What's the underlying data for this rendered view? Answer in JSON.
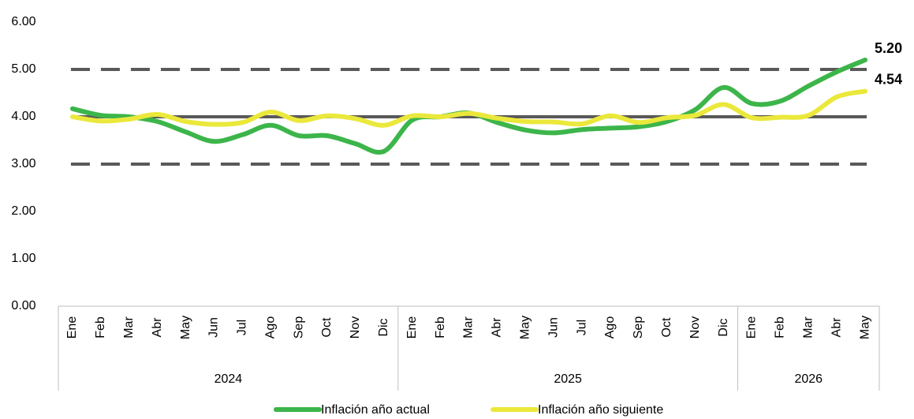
{
  "chart_data": {
    "type": "line",
    "groups": [
      {
        "label": "2024",
        "months": [
          "Ene",
          "Feb",
          "Mar",
          "Abr",
          "May",
          "Jun",
          "Jul",
          "Ago",
          "Sep",
          "Oct",
          "Nov",
          "Dic"
        ]
      },
      {
        "label": "2025",
        "months": [
          "Ene",
          "Feb",
          "Mar",
          "Abr",
          "May",
          "Jun",
          "Jul",
          "Ago",
          "Sep",
          "Oct",
          "Nov",
          "Dic"
        ]
      },
      {
        "label": "2026",
        "months": [
          "Ene",
          "Feb",
          "Mar",
          "Abr",
          "May"
        ]
      }
    ],
    "series": [
      {
        "name": "Inflación año actual",
        "color": "#3cb54a",
        "values": [
          4.17,
          4.03,
          4.0,
          3.9,
          3.68,
          3.48,
          3.62,
          3.82,
          3.6,
          3.6,
          3.43,
          3.27,
          3.93,
          4.0,
          4.08,
          3.88,
          3.72,
          3.66,
          3.73,
          3.76,
          3.79,
          3.9,
          4.15,
          4.62,
          4.28,
          4.33,
          4.65,
          4.95,
          5.2
        ],
        "value_labels": [
          null,
          null,
          null,
          null,
          null,
          null,
          null,
          null,
          null,
          null,
          null,
          null,
          null,
          null,
          null,
          null,
          null,
          null,
          null,
          null,
          null,
          null,
          null,
          null,
          null,
          null,
          null,
          null,
          "5.20"
        ]
      },
      {
        "name": "Inflación año siguiente",
        "color": "#ebe83c",
        "values": [
          4.0,
          3.91,
          3.95,
          4.05,
          3.9,
          3.84,
          3.88,
          4.1,
          3.92,
          4.02,
          3.96,
          3.82,
          4.02,
          4.0,
          4.07,
          3.97,
          3.9,
          3.89,
          3.85,
          4.02,
          3.88,
          3.98,
          4.03,
          4.26,
          3.98,
          3.99,
          4.03,
          4.42,
          4.54
        ],
        "value_labels": [
          null,
          null,
          null,
          null,
          null,
          null,
          null,
          null,
          null,
          null,
          null,
          null,
          null,
          null,
          null,
          null,
          null,
          null,
          null,
          null,
          null,
          null,
          null,
          null,
          null,
          null,
          null,
          null,
          "4.54"
        ]
      }
    ],
    "reference_lines": [
      {
        "value": 3,
        "style": "dashed"
      },
      {
        "value": 4,
        "style": "solid"
      },
      {
        "value": 5,
        "style": "dashed"
      }
    ],
    "reference_color": "#595959",
    "ylim": [
      0,
      6
    ],
    "yticks": [
      {
        "value": 0,
        "label": "0.00"
      },
      {
        "value": 1,
        "label": "1.00"
      },
      {
        "value": 2,
        "label": "2.00"
      },
      {
        "value": 3,
        "label": "3.00"
      },
      {
        "value": 4,
        "label": "4.00"
      },
      {
        "value": 5,
        "label": "5.00"
      },
      {
        "value": 6,
        "label": "6.00"
      }
    ],
    "legend": "bottom"
  }
}
